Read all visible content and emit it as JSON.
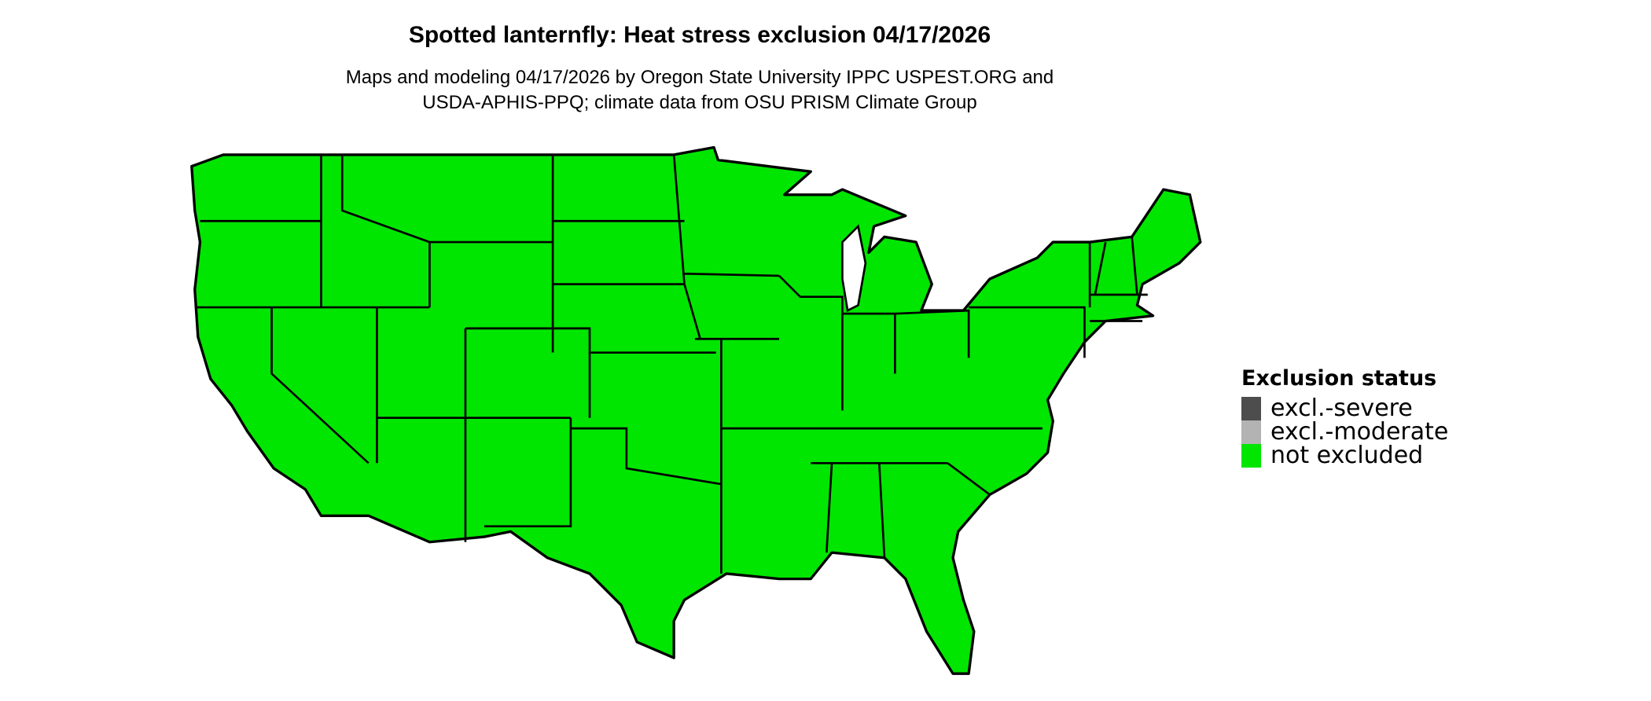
{
  "title": "Spotted lanternfly: Heat stress exclusion 04/17/2026",
  "subtitle_line1": "Maps and modeling 04/17/2026 by Oregon State University IPPC USPEST.ORG and",
  "subtitle_line2": "USDA-APHIS-PPQ; climate data from OSU PRISM Climate Group",
  "map": {
    "region": "Contiguous United States",
    "fill_color": "#00E600",
    "status_shown": "not excluded"
  },
  "legend": {
    "title": "Exclusion status",
    "items": [
      {
        "label": "excl.-severe",
        "color": "#4D4D4D"
      },
      {
        "label": "excl.-moderate",
        "color": "#B3B3B3"
      },
      {
        "label": "not excluded",
        "color": "#00E600"
      }
    ]
  }
}
